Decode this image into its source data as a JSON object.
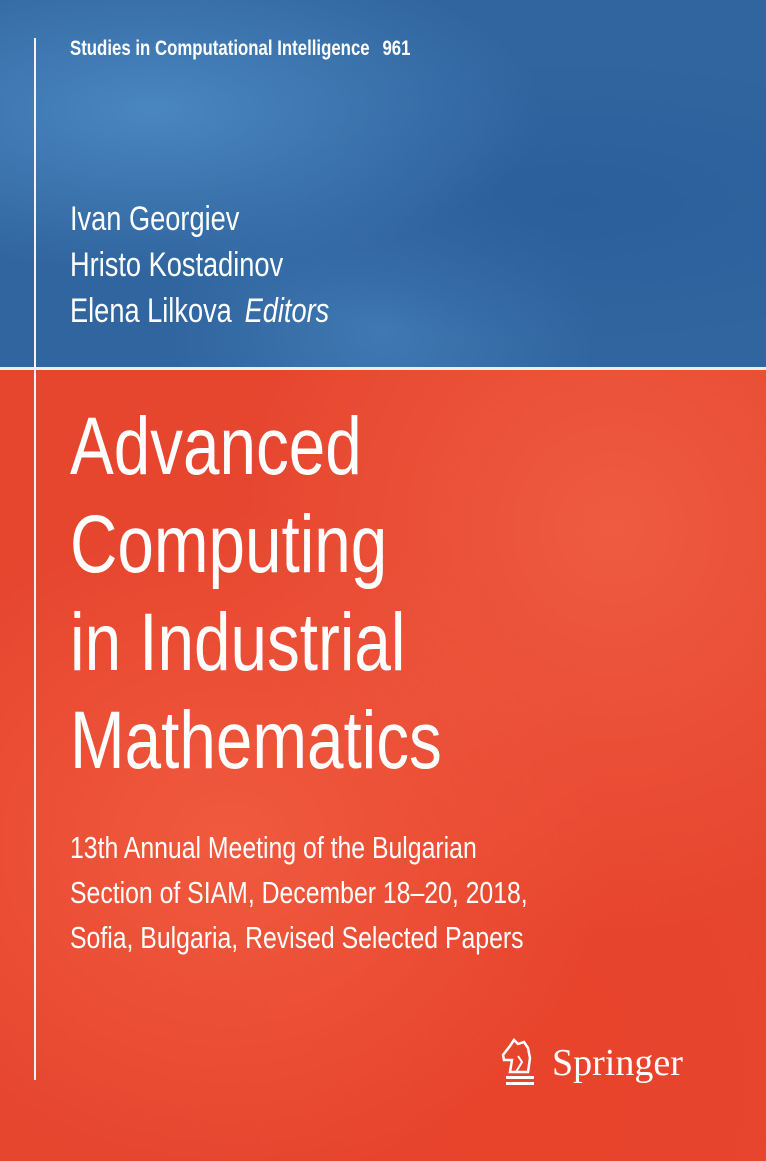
{
  "series": {
    "name": "Studies in Computational Intelligence",
    "number": "961"
  },
  "editors": [
    "Ivan Georgiev",
    "Hristo Kostadinov",
    "Elena Lilkova"
  ],
  "editors_label": "Editors",
  "title_lines": [
    "Advanced",
    "Computing",
    "in Industrial",
    "Mathematics"
  ],
  "subtitle_lines": [
    "13th Annual Meeting of the Bulgarian",
    "Section of SIAM, December 18–20, 2018,",
    "Sofia, Bulgaria, Revised Selected Papers"
  ],
  "publisher": {
    "name": "Springer",
    "icon": "springer-horse-icon"
  },
  "colors": {
    "top_band": "#30659f",
    "bottom_band": "#e6452e",
    "text": "#ffffff"
  }
}
